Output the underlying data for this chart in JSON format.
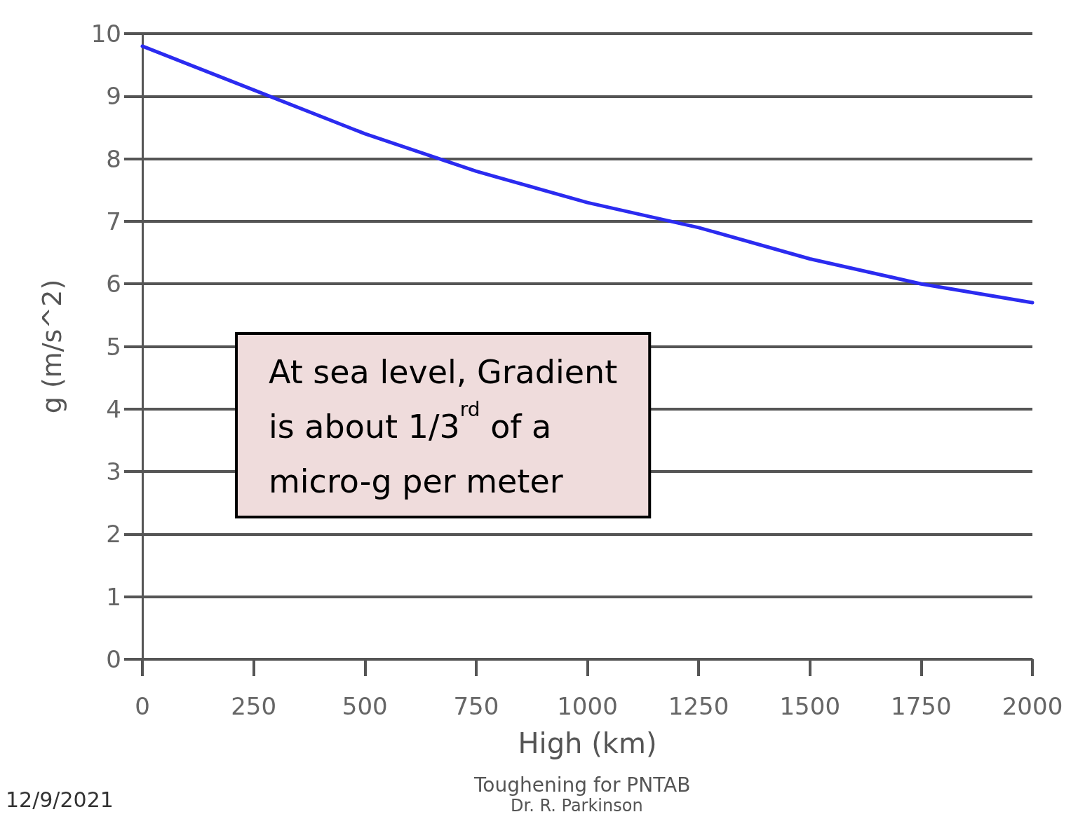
{
  "chart_data": {
    "type": "line",
    "xlabel": "High (km)",
    "ylabel": "g (m/s^2)",
    "x": [
      0,
      250,
      500,
      750,
      1000,
      1250,
      1500,
      1750,
      2000
    ],
    "series": [
      {
        "color": "#2b2bf0",
        "values": [
          9.8,
          9.1,
          8.4,
          7.8,
          7.3,
          6.9,
          6.4,
          6.0,
          5.7
        ]
      }
    ],
    "xlim": [
      0,
      2000
    ],
    "xticks": [
      0,
      250,
      500,
      750,
      1000,
      1250,
      1500,
      1750,
      2000
    ],
    "ylim": [
      0,
      10
    ],
    "yticks": [
      0,
      1,
      2,
      3,
      4,
      5,
      6,
      7,
      8,
      9,
      10
    ],
    "grid": "y",
    "marker": "none",
    "line_style": "solid",
    "annotations": [
      "At sea level, Gradient is about 1/3$^{rd}$ of a micro-g per meter",
      "12/9/2021",
      "Toughening for PNTAB",
      "Dr. R. Parkinson"
    ]
  }
}
